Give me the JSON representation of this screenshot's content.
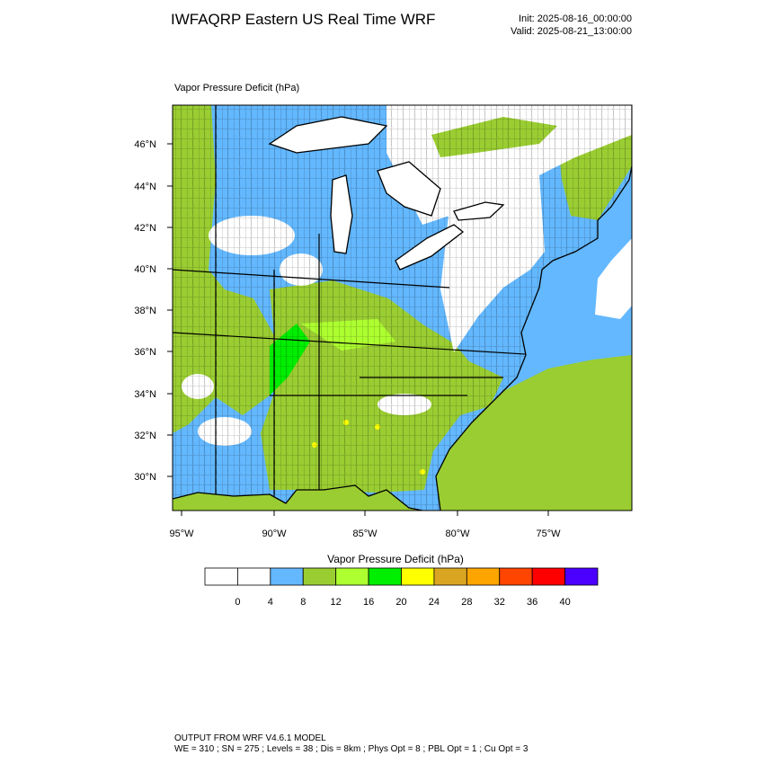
{
  "header": {
    "title": "IWFAQRP Eastern US Real Time WRF",
    "init": "Init: 2025-08-16_00:00:00",
    "valid": "Valid: 2025-08-21_13:00:00"
  },
  "map": {
    "title": "Vapor Pressure Deficit   (hPa)",
    "lat_labels": [
      "46°N",
      "44°N",
      "42°N",
      "40°N",
      "38°N",
      "36°N",
      "34°N",
      "32°N",
      "30°N"
    ],
    "lon_labels": [
      "95°W",
      "90°W",
      "85°W",
      "80°W",
      "75°W"
    ]
  },
  "colorbar": {
    "title": "Vapor Pressure Deficit  (hPa)",
    "colors": [
      "#ffffff",
      "#ffffff",
      "#63b8ff",
      "#9acd32",
      "#adff2f",
      "#00ee00",
      "#ffff00",
      "#daa520",
      "#ffa500",
      "#ff4500",
      "#ff0000",
      "#4b00ff"
    ],
    "ticks": [
      0,
      4,
      8,
      12,
      16,
      20,
      24,
      28,
      32,
      36,
      40
    ]
  },
  "footer": {
    "line1": "OUTPUT FROM WRF V4.6.1 MODEL",
    "line2": "WE = 310 ; SN = 275 ; Levels = 38 ; Dis = 8km ; Phys Opt = 8 ; PBL Opt = 1 ; Cu Opt = 3"
  }
}
